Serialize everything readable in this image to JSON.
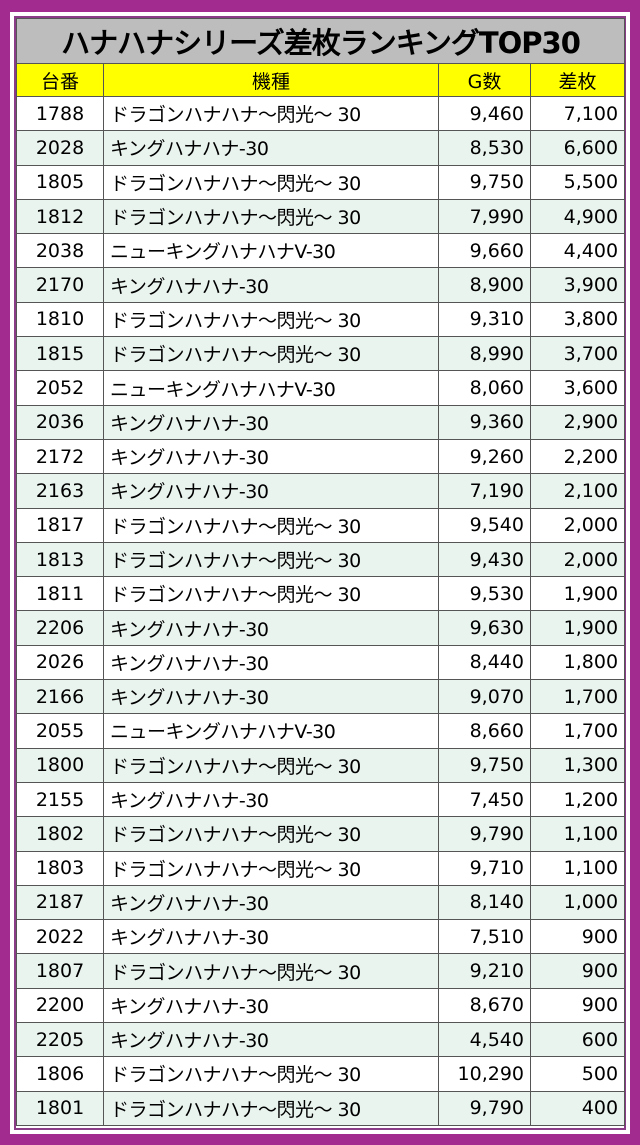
{
  "title": "ハナハナシリーズ差枚ランキングTOP30",
  "columns": [
    "台番",
    "機種",
    "G数",
    "差枚"
  ],
  "rows": [
    [
      "1788",
      "ドラゴンハナハナ～閃光～ 30",
      "9,460",
      "7,100"
    ],
    [
      "2028",
      "キングハナハナ-30",
      "8,530",
      "6,600"
    ],
    [
      "1805",
      "ドラゴンハナハナ～閃光～ 30",
      "9,750",
      "5,500"
    ],
    [
      "1812",
      "ドラゴンハナハナ～閃光～ 30",
      "7,990",
      "4,900"
    ],
    [
      "2038",
      "ニューキングハナハナV-30",
      "9,660",
      "4,400"
    ],
    [
      "2170",
      "キングハナハナ-30",
      "8,900",
      "3,900"
    ],
    [
      "1810",
      "ドラゴンハナハナ～閃光～ 30",
      "9,310",
      "3,800"
    ],
    [
      "1815",
      "ドラゴンハナハナ～閃光～ 30",
      "8,990",
      "3,700"
    ],
    [
      "2052",
      "ニューキングハナハナV-30",
      "8,060",
      "3,600"
    ],
    [
      "2036",
      "キングハナハナ-30",
      "9,360",
      "2,900"
    ],
    [
      "2172",
      "キングハナハナ-30",
      "9,260",
      "2,200"
    ],
    [
      "2163",
      "キングハナハナ-30",
      "7,190",
      "2,100"
    ],
    [
      "1817",
      "ドラゴンハナハナ～閃光～ 30",
      "9,540",
      "2,000"
    ],
    [
      "1813",
      "ドラゴンハナハナ～閃光～ 30",
      "9,430",
      "2,000"
    ],
    [
      "1811",
      "ドラゴンハナハナ～閃光～ 30",
      "9,530",
      "1,900"
    ],
    [
      "2206",
      "キングハナハナ-30",
      "9,630",
      "1,900"
    ],
    [
      "2026",
      "キングハナハナ-30",
      "8,440",
      "1,800"
    ],
    [
      "2166",
      "キングハナハナ-30",
      "9,070",
      "1,700"
    ],
    [
      "2055",
      "ニューキングハナハナV-30",
      "8,660",
      "1,700"
    ],
    [
      "1800",
      "ドラゴンハナハナ～閃光～ 30",
      "9,750",
      "1,300"
    ],
    [
      "2155",
      "キングハナハナ-30",
      "7,450",
      "1,200"
    ],
    [
      "1802",
      "ドラゴンハナハナ～閃光～ 30",
      "9,790",
      "1,100"
    ],
    [
      "1803",
      "ドラゴンハナハナ～閃光～ 30",
      "9,710",
      "1,100"
    ],
    [
      "2187",
      "キングハナハナ-30",
      "8,140",
      "1,000"
    ],
    [
      "2022",
      "キングハナハナ-30",
      "7,510",
      "900"
    ],
    [
      "1807",
      "ドラゴンハナハナ～閃光～ 30",
      "9,210",
      "900"
    ],
    [
      "2200",
      "キングハナハナ-30",
      "8,670",
      "900"
    ],
    [
      "2205",
      "キングハナハナ-30",
      "4,540",
      "600"
    ],
    [
      "1806",
      "ドラゴンハナハナ～閃光～ 30",
      "10,290",
      "500"
    ],
    [
      "1801",
      "ドラゴンハナハナ～閃光～ 30",
      "9,790",
      "400"
    ]
  ],
  "colors": {
    "background": "#a22b8f",
    "title_bg": "#bdbdbd",
    "header_bg": "#ffff00",
    "alt_row": "#eaf4ef"
  }
}
